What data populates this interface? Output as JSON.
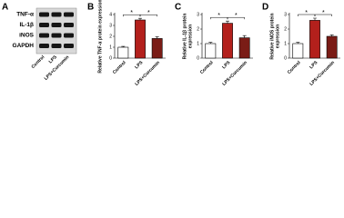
{
  "blot": {
    "label": "A",
    "rows": [
      "TNF-α",
      "IL-1β",
      "iNOS",
      "GAPDH"
    ],
    "lanes": [
      "Control",
      "LPS",
      "LPS+Curcumin"
    ]
  },
  "chart_data": [
    {
      "type": "bar",
      "label": "B",
      "ylabel": [
        "Relative TNF-α protein expression"
      ],
      "categories": [
        "Control",
        "LPS",
        "LPS+Curcumin"
      ],
      "values": [
        1.0,
        3.5,
        1.8
      ],
      "errors": [
        0.08,
        0.15,
        0.15
      ],
      "colors": [
        "#ffffff",
        "#b3201c",
        "#7a1c16"
      ],
      "ylim": [
        0,
        4
      ],
      "yticks": [
        0,
        1,
        2,
        3,
        4
      ],
      "annotations": [
        "*",
        "*"
      ]
    },
    {
      "type": "bar",
      "label": "C",
      "ylabel": [
        "Relative IL-1β protein",
        "expression"
      ],
      "categories": [
        "Control",
        "LPS",
        "LPS+Curcumin"
      ],
      "values": [
        1.0,
        2.4,
        1.4
      ],
      "errors": [
        0.08,
        0.15,
        0.15
      ],
      "colors": [
        "#ffffff",
        "#b3201c",
        "#7a1c16"
      ],
      "ylim": [
        0,
        3
      ],
      "yticks": [
        0,
        1,
        2,
        3
      ],
      "annotations": [
        "*",
        "*"
      ]
    },
    {
      "type": "bar",
      "label": "D",
      "ylabel": [
        "Relative iNOS protein",
        "expression"
      ],
      "categories": [
        "Control",
        "LPS",
        "LPS+Curcumin"
      ],
      "values": [
        1.0,
        2.6,
        1.5
      ],
      "errors": [
        0.08,
        0.15,
        0.1
      ],
      "colors": [
        "#ffffff",
        "#b3201c",
        "#7a1c16"
      ],
      "ylim": [
        0,
        3
      ],
      "yticks": [
        0,
        1,
        2,
        3
      ],
      "annotations": [
        "*",
        "*"
      ]
    }
  ]
}
